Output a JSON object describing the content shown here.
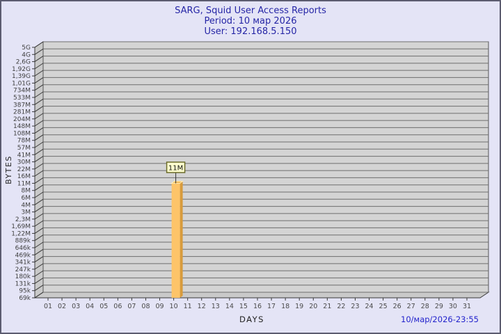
{
  "window": {
    "background": "#E4E4F6",
    "border_color": "#5C5C70"
  },
  "header": {
    "title": "SARG, Squid User Access Reports",
    "period": "Period: 10 мар 2026",
    "user": "User: 192.168.5.150",
    "text_color": "#2626A6"
  },
  "footer": {
    "timestamp": "10/мар/2026-23:55",
    "text_color": "#2222CC"
  },
  "chart_data": {
    "type": "bar",
    "title": "SARG, Squid User Access Reports",
    "subtitle_period": "Period: 10 мар 2026",
    "subtitle_user": "User: 192.168.5.150",
    "xlabel": "DAYS",
    "ylabel": "BYTES",
    "y_scale": "log",
    "grid": true,
    "legend": "none",
    "x_categories": [
      "01",
      "02",
      "03",
      "04",
      "05",
      "06",
      "07",
      "08",
      "09",
      "10",
      "11",
      "12",
      "13",
      "14",
      "15",
      "16",
      "17",
      "18",
      "19",
      "20",
      "21",
      "22",
      "23",
      "24",
      "25",
      "26",
      "27",
      "28",
      "29",
      "30",
      "31"
    ],
    "y_tick_labels_top_to_bottom": [
      "5G",
      "4G",
      "2,6G",
      "1,92G",
      "1,39G",
      "1,01G",
      "734M",
      "533M",
      "387M",
      "281M",
      "204M",
      "148M",
      "108M",
      "78M",
      "57M",
      "41M",
      "30M",
      "22M",
      "16M",
      "11M",
      "8M",
      "6M",
      "4M",
      "3M",
      "2,3M",
      "1,69M",
      "1,22M",
      "889k",
      "646k",
      "469k",
      "341k",
      "247k",
      "180k",
      "131k",
      "95k",
      "69k"
    ],
    "bars": [
      {
        "day": "10",
        "value_label": "11M",
        "y_tick_label": "11M",
        "y_tick_index_from_top": 19
      }
    ],
    "footer_timestamp": "10/мар/2026-23:55",
    "colors": {
      "plot_bg": "#D4D4D4",
      "wall_bg": "#C9C9C9",
      "gridline": "#6E6E6E",
      "axis_line": "#3A3A3A",
      "plot_edge": "#555555",
      "y_tick_text": "#3F3F3F",
      "x_tick_text": "#4A4A4A",
      "axis_title_text": "#222222",
      "bar_front": "#FDC469",
      "bar_side": "#D89B3C",
      "bar_top": "#F0B655",
      "bar_highlight": "#FFEDB8",
      "value_label_bg": "#FFFFCE",
      "value_label_border": "#6B6B2A",
      "value_label_text": "#111111"
    }
  }
}
